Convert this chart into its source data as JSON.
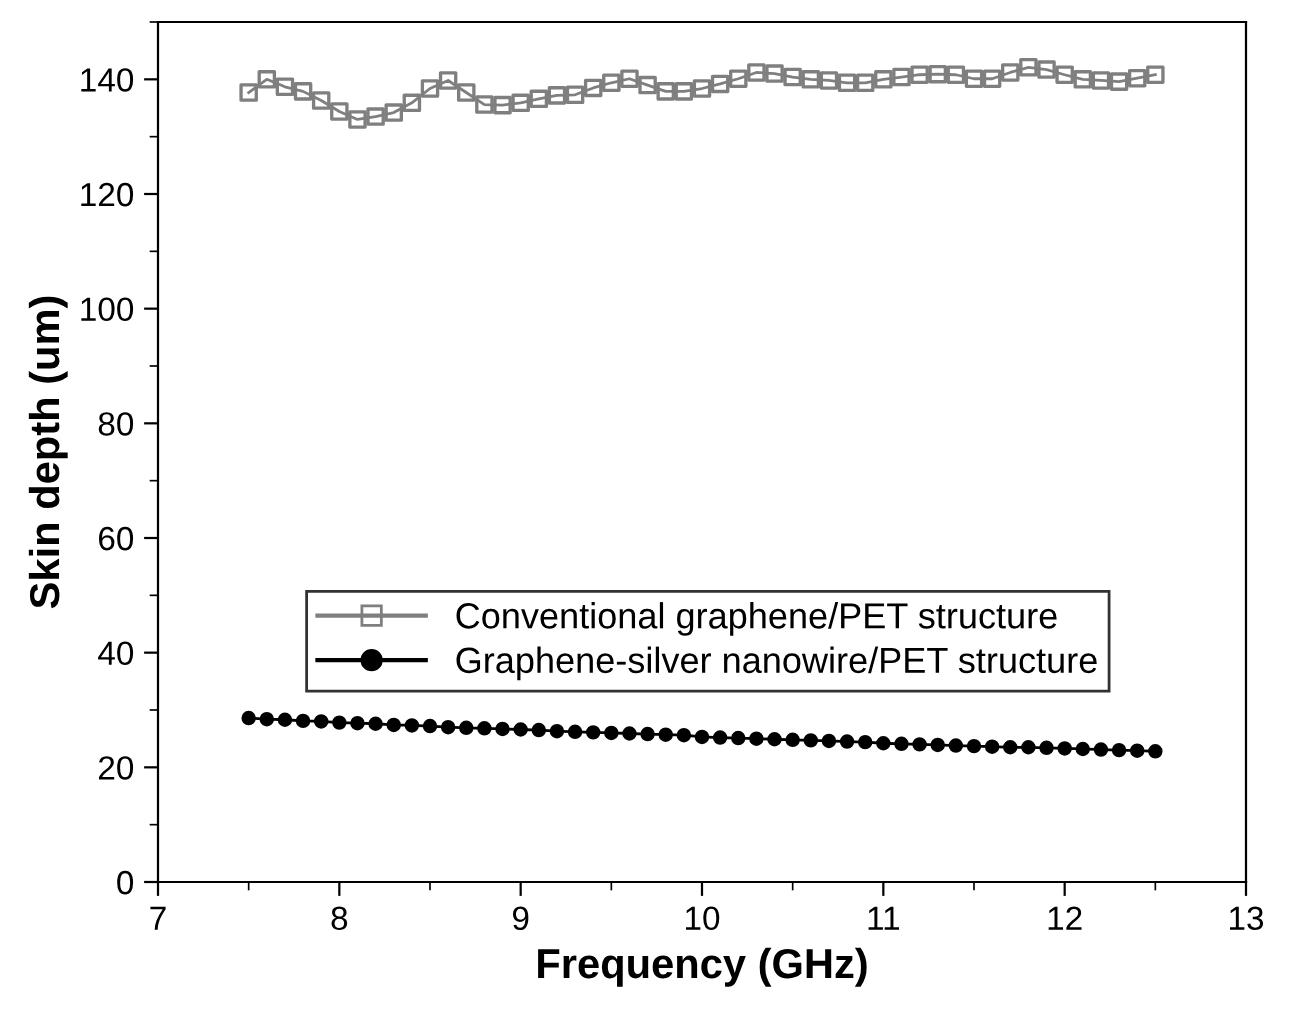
{
  "chart_data": {
    "type": "line",
    "xlabel": "Frequency (GHz)",
    "ylabel": "Skin depth (um)",
    "x": [
      7.5,
      7.6,
      7.7,
      7.8,
      7.9,
      8.0,
      8.1,
      8.2,
      8.3,
      8.4,
      8.5,
      8.6,
      8.7,
      8.8,
      8.9,
      9.0,
      9.1,
      9.2,
      9.3,
      9.4,
      9.5,
      9.6,
      9.7,
      9.8,
      9.9,
      10.0,
      10.1,
      10.2,
      10.3,
      10.4,
      10.5,
      10.6,
      10.7,
      10.8,
      10.9,
      11.0,
      11.1,
      11.2,
      11.3,
      11.4,
      11.5,
      11.6,
      11.7,
      11.8,
      11.9,
      12.0,
      12.1,
      12.2,
      12.3,
      12.4,
      12.5
    ],
    "series": [
      {
        "name": "Conventional graphene/PET structure",
        "color": "#7f7f7f",
        "marker": "square",
        "values": [
          137.7,
          140.0,
          138.7,
          137.9,
          136.3,
          134.4,
          133.0,
          133.5,
          134.2,
          135.9,
          138.4,
          139.8,
          137.7,
          135.6,
          135.5,
          135.9,
          136.6,
          137.2,
          137.3,
          138.5,
          139.4,
          140.1,
          139.0,
          137.9,
          137.9,
          138.4,
          139.2,
          140.1,
          141.2,
          141.0,
          140.4,
          140.0,
          139.8,
          139.4,
          139.4,
          140.0,
          140.4,
          140.8,
          140.9,
          140.8,
          140.1,
          140.1,
          141.2,
          142.1,
          141.7,
          140.8,
          140.0,
          139.8,
          139.6,
          140.2,
          140.8
        ]
      },
      {
        "name": "Graphene-silver nanowire/PET structure",
        "color": "#000000",
        "marker": "circle",
        "values": [
          28.6,
          28.4,
          28.3,
          28.1,
          28.0,
          27.8,
          27.7,
          27.6,
          27.4,
          27.3,
          27.2,
          27.0,
          26.9,
          26.8,
          26.7,
          26.6,
          26.5,
          26.3,
          26.2,
          26.1,
          26.0,
          25.9,
          25.8,
          25.7,
          25.6,
          25.3,
          25.2,
          25.1,
          25.0,
          24.9,
          24.8,
          24.7,
          24.6,
          24.5,
          24.4,
          24.2,
          24.1,
          24.0,
          23.9,
          23.8,
          23.7,
          23.6,
          23.5,
          23.5,
          23.4,
          23.3,
          23.2,
          23.1,
          23.0,
          22.9,
          22.8
        ]
      }
    ],
    "xlim": [
      7,
      13
    ],
    "xticks": [
      7,
      8,
      9,
      10,
      11,
      12,
      13
    ],
    "ylim": [
      0,
      150
    ],
    "yticks": [
      0,
      20,
      40,
      60,
      80,
      100,
      120,
      140
    ],
    "grid": false,
    "legend": "left",
    "line_style": "solid"
  }
}
